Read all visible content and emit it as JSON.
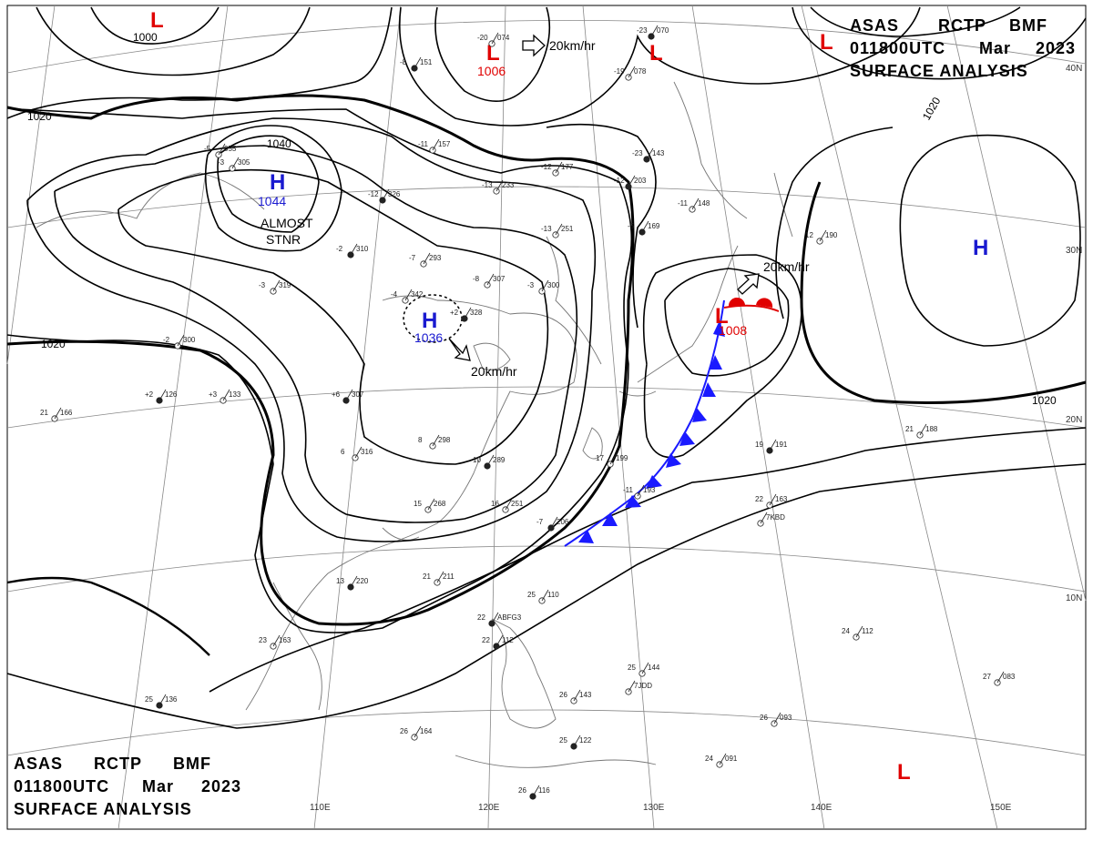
{
  "header_top": {
    "line1": [
      "ASAS",
      "RCTP",
      "BMF"
    ],
    "line2": [
      "011800UTC",
      "Mar",
      "2023"
    ],
    "line3": "SURFACE ANALYSIS"
  },
  "header_bottom": {
    "line1": [
      "ASAS",
      "RCTP",
      "BMF"
    ],
    "line2": [
      "011800UTC",
      "Mar",
      "2023"
    ],
    "line3": "SURFACE ANALYSIS"
  },
  "isobars": {
    "i1000": "1000",
    "i1020a": "1020",
    "i1040": "1040",
    "i1020b": "1020",
    "i1020c": "1020",
    "i1020d": "1020"
  },
  "systems": {
    "high_mongolia": {
      "symbol": "H",
      "pressure": "1044",
      "note1": "ALMOST",
      "note2": "STNR"
    },
    "high_china": {
      "symbol": "H",
      "pressure": "1036",
      "speed": "20km/hr"
    },
    "high_pacific": {
      "symbol": "H"
    },
    "low_north": {
      "symbol": "L",
      "pressure": "1006",
      "speed": "20km/hr"
    },
    "low_japan": {
      "symbol": "L",
      "pressure": "1008",
      "speed": "20km/hr"
    },
    "low_nw": {
      "symbol": "L"
    },
    "low_ne1": {
      "symbol": "L"
    },
    "low_ne2": {
      "symbol": "L"
    },
    "low_se": {
      "symbol": "L"
    }
  },
  "lon_labels": [
    "110E",
    "120E",
    "130E",
    "140E",
    "150E"
  ],
  "lat_labels": [
    "40N",
    "30N",
    "20N",
    "10N"
  ],
  "stations": [
    {
      "v": "151",
      "t": "-8"
    },
    {
      "v": "157",
      "t": "-11"
    },
    {
      "v": "233",
      "t": "-13"
    },
    {
      "v": "326",
      "t": "-12"
    },
    {
      "v": "293",
      "t": "-7"
    },
    {
      "v": "307",
      "t": "-8"
    },
    {
      "v": "328",
      "t": "+2"
    },
    {
      "v": "342",
      "t": "-4"
    },
    {
      "v": "300",
      "t": "-3"
    },
    {
      "v": "310",
      "t": "-2"
    },
    {
      "v": "319",
      "t": "-3"
    },
    {
      "v": "300",
      "t": "-2"
    },
    {
      "v": "126",
      "t": "+2"
    },
    {
      "v": "133",
      "t": "+3"
    },
    {
      "v": "166",
      "t": "21"
    },
    {
      "v": "307",
      "t": "+6"
    },
    {
      "v": "316",
      "t": "6"
    },
    {
      "v": "298",
      "t": "8"
    },
    {
      "v": "289",
      "t": "10"
    },
    {
      "v": "268",
      "t": "15"
    },
    {
      "v": "251",
      "t": "16"
    },
    {
      "v": "206",
      "t": "-7"
    },
    {
      "v": "199",
      "t": "17"
    },
    {
      "v": "193",
      "t": "-11"
    },
    {
      "v": "220",
      "t": "13"
    },
    {
      "v": "211",
      "t": "21"
    },
    {
      "v": "163",
      "t": "23"
    },
    {
      "v": "136",
      "t": "25"
    },
    {
      "v": "164",
      "t": "26"
    },
    {
      "v": "110",
      "t": "25"
    },
    {
      "v": "112",
      "t": "22"
    },
    {
      "v": "144",
      "t": "25"
    },
    {
      "v": "143",
      "t": "26"
    },
    {
      "v": "122",
      "t": "25"
    },
    {
      "v": "091",
      "t": "24"
    },
    {
      "v": "093",
      "t": "26"
    },
    {
      "v": "116",
      "t": "26"
    },
    {
      "v": "112",
      "t": "24"
    },
    {
      "v": "083",
      "t": "27"
    },
    {
      "v": "191",
      "t": "19"
    },
    {
      "v": "163",
      "t": "22"
    },
    {
      "v": "188",
      "t": "21"
    },
    {
      "v": "169",
      "t": "-5"
    },
    {
      "v": "148",
      "t": "-11"
    },
    {
      "v": "177",
      "t": "-12"
    },
    {
      "v": "203",
      "t": "-12"
    },
    {
      "v": "251",
      "t": "-13"
    },
    {
      "v": "074",
      "t": "-20"
    },
    {
      "v": "070",
      "t": "-23"
    },
    {
      "v": "078",
      "t": "-19"
    },
    {
      "v": "190",
      "t": "12"
    },
    {
      "v": "143",
      "t": "-23"
    },
    {
      "v": "305",
      "t": "-3"
    },
    {
      "v": "055",
      "t": "-5"
    },
    {
      "v": "ABFG3",
      "t": "22"
    },
    {
      "v": "7KBD",
      "t": ""
    },
    {
      "v": "7JDD",
      "t": ""
    }
  ],
  "colors": {
    "front_blue": "#1a1aff",
    "front_red": "#e00000",
    "high": "#1a1ad0",
    "low": "#e00000",
    "isobar": "#000000",
    "grid": "#888888",
    "coast": "#777777"
  }
}
